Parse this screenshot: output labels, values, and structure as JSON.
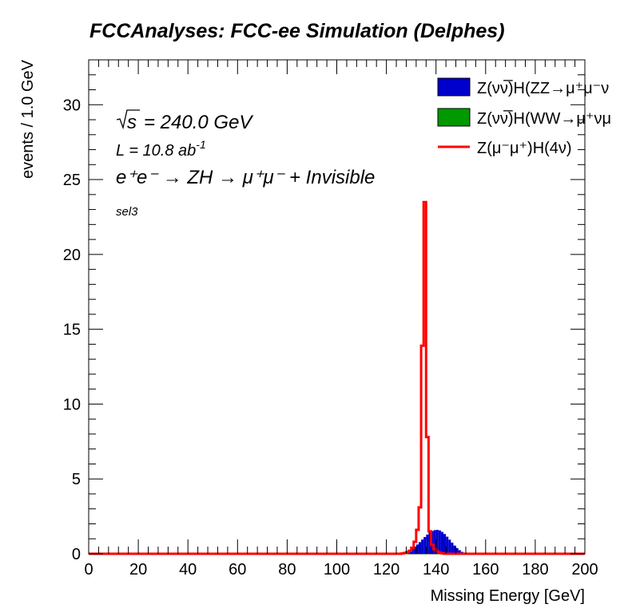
{
  "chart_data": {
    "type": "bar",
    "title": "FCCAnalyses: FCC-ee Simulation (Delphes)",
    "xlabel": "Missing Energy [GeV]",
    "ylabel": "events / 1.0 GeV",
    "xlim": [
      0,
      200
    ],
    "ylim": [
      0,
      33
    ],
    "x_ticks": [
      "0",
      "20",
      "40",
      "60",
      "80",
      "100",
      "120",
      "140",
      "160",
      "180",
      "200"
    ],
    "y_ticks": [
      "0",
      "5",
      "10",
      "15",
      "20",
      "25",
      "30"
    ],
    "grid": false,
    "legend_position": "top-right",
    "annotations": {
      "sqrt_s": "= 240.0 GeV",
      "lumi_prefix": "L = 10.8 ab",
      "lumi_exp": "-1",
      "process": "e⁺e⁻ → ZH → μ⁺μ⁻ + Invisible",
      "selection": "sel3"
    },
    "series": [
      {
        "name": "Z(νν̅)H(ZZ→μ⁺μ⁻ν",
        "style": "filled",
        "color": "#0000cc",
        "x_edges_start": 124,
        "bin_width": 1,
        "values": [
          0.02,
          0.05,
          0.08,
          0.12,
          0.18,
          0.26,
          0.36,
          0.48,
          0.62,
          0.78,
          0.95,
          1.12,
          1.28,
          1.42,
          1.52,
          1.58,
          1.6,
          1.56,
          1.46,
          1.32,
          1.14,
          0.94,
          0.74,
          0.55,
          0.38,
          0.24,
          0.13,
          0.05
        ]
      },
      {
        "name": "Z(νν̅)H(WW→μ⁺νμ",
        "style": "filled",
        "color": "#009900",
        "x_edges_start": 124,
        "bin_width": 1,
        "values": [
          0,
          0,
          0,
          0,
          0,
          0,
          0,
          0,
          0,
          0,
          0,
          0,
          0,
          0,
          0,
          0,
          0,
          0,
          0,
          0,
          0,
          0,
          0,
          0,
          0,
          0,
          0,
          0
        ]
      },
      {
        "name": "Z(μ⁻μ⁺)H(4ν)",
        "style": "line",
        "color": "#ff0000",
        "x_edges_start": 126,
        "bin_width": 1,
        "values": [
          0.02,
          0.05,
          0.1,
          0.2,
          0.4,
          0.8,
          1.6,
          3.1,
          13.9,
          23.5,
          7.8,
          1.5,
          0.6,
          0.3,
          0.15,
          0.07,
          0.03
        ]
      }
    ]
  }
}
